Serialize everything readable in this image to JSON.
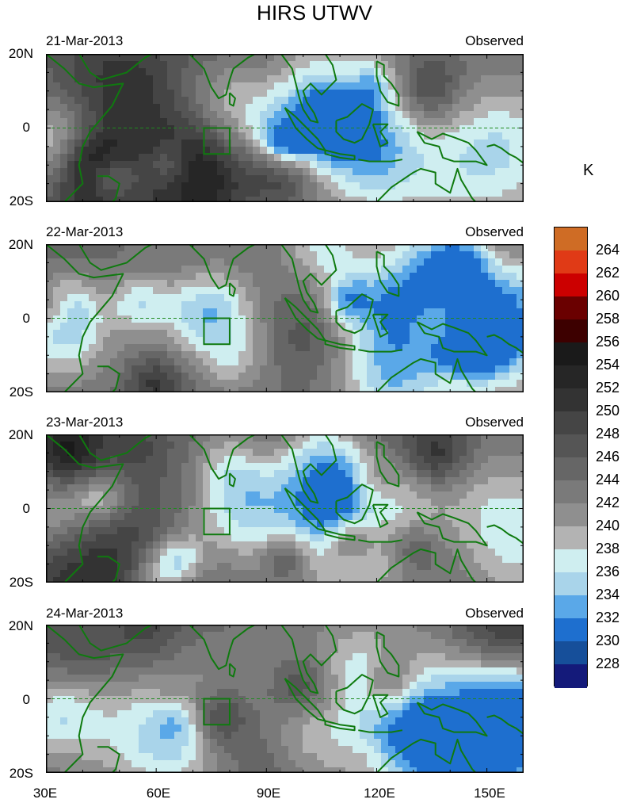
{
  "title": "HIRS UTWV",
  "unit": "K",
  "panels": [
    {
      "date": "21-Mar-2013",
      "label": "Observed"
    },
    {
      "date": "22-Mar-2013",
      "label": "Observed"
    },
    {
      "date": "23-Mar-2013",
      "label": "Observed"
    },
    {
      "date": "24-Mar-2013",
      "label": "Observed"
    }
  ],
  "lat_labels": [
    "20N",
    "0",
    "20S"
  ],
  "lon_labels": [
    "30E",
    "60E",
    "90E",
    "120E",
    "150E"
  ],
  "colorbar": {
    "labels": [
      "264",
      "262",
      "260",
      "258",
      "256",
      "254",
      "252",
      "250",
      "248",
      "246",
      "244",
      "242",
      "240",
      "238",
      "236",
      "234",
      "232",
      "230",
      "228"
    ],
    "colors": [
      "#cf6c25",
      "#e03a16",
      "#cc0000",
      "#6a0000",
      "#3d0000",
      "#1a1a1a",
      "#262626",
      "#333333",
      "#454545",
      "#555555",
      "#666666",
      "#7a7a7a",
      "#8f8f8f",
      "#b3b3b3",
      "#cfeef0",
      "#a9d4ea",
      "#5aa8e8",
      "#1e6fcf",
      "#164f9a",
      "#141a7a"
    ]
  },
  "map_data": {
    "lon_range": [
      30,
      160
    ],
    "lat_range": [
      -20,
      20
    ],
    "box_region": {
      "lon": [
        73,
        80
      ],
      "lat": [
        -7,
        0
      ]
    }
  }
}
